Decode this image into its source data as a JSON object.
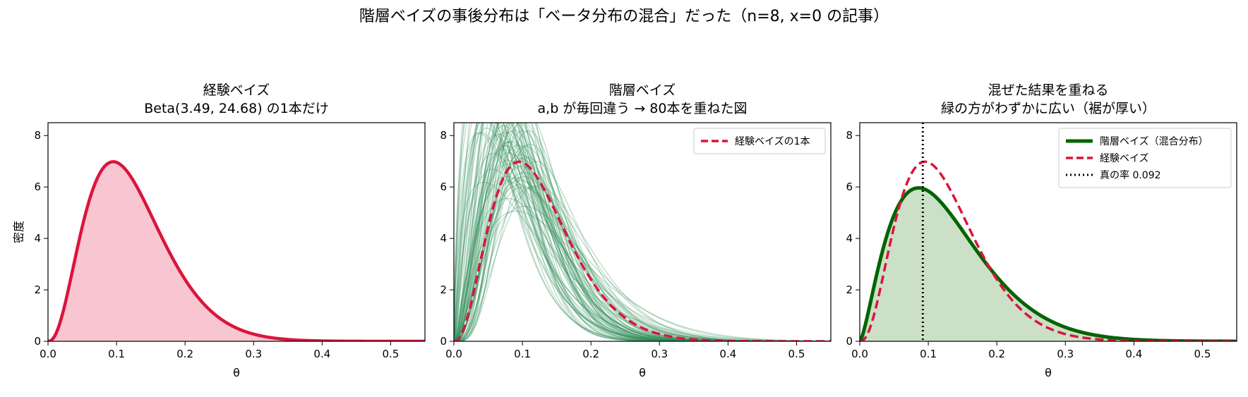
{
  "figure": {
    "suptitle": "階層ベイズの事後分布は「ベータ分布の混合」だった（n=8, x=0 の記事）"
  },
  "colors": {
    "empirical": "#dc143c",
    "empirical_fill": "#f7c6d1",
    "hier_lines": "#2e8b57",
    "mixture": "#006400",
    "mixture_fill": "#cce0c8",
    "true_rate": "#000000"
  },
  "chart_data": [
    {
      "type": "area",
      "title_line1": "経験ベイズ",
      "title_line2": "Beta(3.49, 24.68) の1本だけ",
      "xlabel": "θ",
      "ylabel": "密度",
      "xlim": [
        0,
        0.55
      ],
      "ylim": [
        0,
        8.5
      ],
      "xticks": [
        "0.0",
        "0.1",
        "0.2",
        "0.3",
        "0.4",
        "0.5"
      ],
      "yticks": [
        "0",
        "2",
        "4",
        "6",
        "8"
      ],
      "series": [
        {
          "distribution": "beta",
          "a": 3.49,
          "b": 24.68,
          "style": "solid",
          "filled": true
        }
      ]
    },
    {
      "type": "line",
      "title_line1": "階層ベイズ",
      "title_line2": "a,b が毎回違う → 80本を重ねた図",
      "xlabel": "θ",
      "ylabel": "",
      "xlim": [
        0,
        0.55
      ],
      "ylim": [
        0,
        8.5
      ],
      "xticks": [
        "0.0",
        "0.1",
        "0.2",
        "0.3",
        "0.4",
        "0.5"
      ],
      "yticks": [
        "0",
        "2",
        "4",
        "6",
        "8"
      ],
      "legend_position": "top-right",
      "legend": [
        {
          "label": "経験ベイズの1本",
          "style": "dashed"
        }
      ],
      "draws": {
        "count": 80,
        "distribution": "beta",
        "a": [
          2.7,
          3.9,
          1.6,
          2.4,
          3.3,
          5.1,
          2.0,
          3.7,
          2.9,
          4.3,
          1.9,
          3.1,
          2.5,
          4.8,
          3.5,
          2.2,
          1.7,
          3.0,
          4.0,
          2.6,
          3.4,
          5.6,
          2.1,
          3.8,
          2.8,
          4.5,
          1.8,
          3.2,
          2.3,
          4.1,
          3.6,
          6.0,
          2.4,
          3.0,
          4.6,
          1.5,
          3.3,
          2.7,
          5.3,
          3.9,
          2.0,
          4.2,
          3.1,
          2.6,
          4.9,
          3.5,
          1.9,
          3.7,
          2.8,
          4.4,
          3.2,
          2.2,
          5.8,
          3.0,
          4.0,
          2.5,
          3.6,
          1.7,
          4.7,
          3.4,
          2.9,
          5.0,
          2.3,
          3.8,
          4.3,
          2.1,
          3.3,
          6.3,
          2.7,
          3.9,
          4.5,
          1.6,
          3.1,
          2.4,
          5.4,
          3.5,
          2.0,
          4.1,
          3.0,
          4.8
        ],
        "b": [
          23.0,
          29.0,
          20.0,
          18.0,
          40.0,
          38.0,
          22.0,
          26.0,
          19.0,
          44.0,
          16.0,
          33.0,
          27.0,
          35.0,
          24.0,
          25.0,
          21.0,
          20.0,
          37.0,
          30.0,
          22.0,
          49.0,
          14.0,
          42.0,
          24.0,
          31.0,
          26.0,
          28.0,
          17.0,
          46.0,
          30.0,
          43.0,
          32.0,
          19.0,
          36.0,
          12.0,
          27.0,
          21.0,
          41.0,
          35.0,
          24.0,
          28.0,
          26.0,
          15.0,
          48.0,
          23.0,
          27.0,
          34.0,
          22.0,
          39.0,
          29.0,
          13.0,
          45.0,
          25.0,
          32.0,
          28.0,
          21.0,
          18.0,
          38.0,
          31.0,
          20.0,
          33.0,
          26.0,
          27.0,
          47.0,
          19.0,
          36.0,
          52.0,
          25.0,
          22.0,
          40.0,
          17.0,
          30.0,
          23.0,
          37.0,
          28.0,
          21.0,
          34.0,
          24.0,
          29.0
        ]
      },
      "series": [
        {
          "name": "経験ベイズの1本",
          "distribution": "beta",
          "a": 3.49,
          "b": 24.68,
          "style": "dashed"
        }
      ]
    },
    {
      "type": "area",
      "title_line1": "混ぜた結果を重ねる",
      "title_line2": "緑の方がわずかに広い（裾が厚い）",
      "xlabel": "θ",
      "ylabel": "",
      "xlim": [
        0,
        0.55
      ],
      "ylim": [
        0,
        8.5
      ],
      "xticks": [
        "0.0",
        "0.1",
        "0.2",
        "0.3",
        "0.4",
        "0.5"
      ],
      "yticks": [
        "0",
        "2",
        "4",
        "6",
        "8"
      ],
      "legend_position": "top-right",
      "legend": [
        {
          "label": "階層ベイズ（混合分布）",
          "style": "solid"
        },
        {
          "label": "経験ベイズ",
          "style": "dashed"
        },
        {
          "label": "真の率 0.092",
          "style": "dotted"
        }
      ],
      "series": [
        {
          "name": "階層ベイズ（混合分布）",
          "distribution": "beta",
          "a": 2.5,
          "b": 17.0,
          "style": "solid",
          "filled": true
        },
        {
          "name": "経験ベイズ",
          "distribution": "beta",
          "a": 3.49,
          "b": 24.68,
          "style": "dashed"
        }
      ],
      "vline": {
        "x": 0.092,
        "style": "dotted"
      }
    }
  ]
}
